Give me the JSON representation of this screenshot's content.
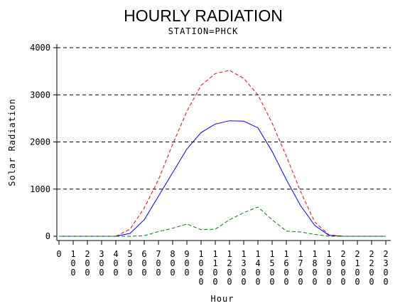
{
  "chart_data": {
    "type": "line",
    "title": "HOURLY RADIATION",
    "subtitle": "STATION=PHCK",
    "xlabel": "Hour",
    "ylabel": "Solar Radiation",
    "ylim": [
      0,
      4000
    ],
    "yticks": [
      0,
      1000,
      2000,
      3000,
      4000
    ],
    "grid": true,
    "x": [
      "0",
      "100",
      "200",
      "300",
      "400",
      "500",
      "600",
      "700",
      "800",
      "900",
      "1000",
      "1100",
      "1200",
      "1300",
      "1400",
      "1500",
      "1600",
      "1700",
      "1800",
      "1900",
      "2000",
      "2100",
      "2200",
      "2300"
    ],
    "series": [
      {
        "color": "#ff0000",
        "style": "dashed",
        "values": [
          0,
          0,
          0,
          0,
          0,
          150,
          600,
          1200,
          1950,
          2650,
          3200,
          3450,
          3520,
          3350,
          3000,
          2400,
          1700,
          950,
          300,
          30,
          0,
          0,
          0,
          0
        ]
      },
      {
        "color": "#0000ff",
        "style": "solid",
        "values": [
          0,
          0,
          0,
          0,
          0,
          60,
          350,
          850,
          1350,
          1850,
          2200,
          2380,
          2450,
          2440,
          2300,
          1800,
          1200,
          650,
          230,
          20,
          0,
          0,
          0,
          0
        ]
      },
      {
        "color": "#008000",
        "style": "dashed",
        "values": [
          0,
          0,
          0,
          0,
          0,
          0,
          10,
          100,
          170,
          260,
          140,
          150,
          350,
          500,
          620,
          350,
          110,
          90,
          40,
          0,
          0,
          0,
          0,
          0
        ]
      }
    ]
  }
}
